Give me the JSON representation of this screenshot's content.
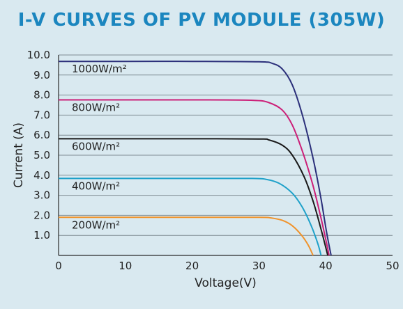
{
  "chart_data": {
    "type": "line",
    "title": "I-V CURVES OF PV MODULE (305W)",
    "xlabel": "Voltage(V)",
    "ylabel": "Current (A)",
    "xlim": [
      0,
      50
    ],
    "ylim": [
      0,
      10
    ],
    "x_ticks": [
      "0",
      "10",
      "20",
      "30",
      "40",
      "50"
    ],
    "y_ticks": [
      "1.0",
      "2.0",
      "3.0",
      "4.0",
      "5.0",
      "6.0",
      "7.0",
      "8.0",
      "9.0",
      "10.0"
    ],
    "grid": true,
    "series": [
      {
        "name": "1000W/m²",
        "color": "#2b2f7a",
        "points": [
          [
            0,
            9.68
          ],
          [
            10,
            9.68
          ],
          [
            20,
            9.68
          ],
          [
            30,
            9.66
          ],
          [
            32,
            9.58
          ],
          [
            33.5,
            9.3
          ],
          [
            35,
            8.5
          ],
          [
            36.5,
            7.0
          ],
          [
            38,
            5.0
          ],
          [
            39.2,
            3.0
          ],
          [
            40.1,
            1.2
          ],
          [
            40.8,
            0
          ]
        ]
      },
      {
        "name": "800W/m²",
        "color": "#cc1f78",
        "points": [
          [
            0,
            7.76
          ],
          [
            10,
            7.76
          ],
          [
            20,
            7.76
          ],
          [
            29,
            7.74
          ],
          [
            31.5,
            7.62
          ],
          [
            33.5,
            7.25
          ],
          [
            35,
            6.5
          ],
          [
            36.5,
            5.2
          ],
          [
            38,
            3.6
          ],
          [
            39.2,
            2.0
          ],
          [
            40,
            0.8
          ],
          [
            40.5,
            0
          ]
        ]
      },
      {
        "name": "600W/m²",
        "color": "#1a1a1a",
        "points": [
          [
            0,
            5.82
          ],
          [
            10,
            5.82
          ],
          [
            20,
            5.82
          ],
          [
            30,
            5.81
          ],
          [
            31.5,
            5.76
          ],
          [
            33.5,
            5.5
          ],
          [
            35,
            5.0
          ],
          [
            36.8,
            3.9
          ],
          [
            38.2,
            2.6
          ],
          [
            39.3,
            1.3
          ],
          [
            40,
            0.4
          ],
          [
            40.3,
            0
          ]
        ]
      },
      {
        "name": "400W/m²",
        "color": "#1ea1c9",
        "points": [
          [
            0,
            3.84
          ],
          [
            10,
            3.84
          ],
          [
            20,
            3.84
          ],
          [
            29,
            3.84
          ],
          [
            31,
            3.8
          ],
          [
            33,
            3.6
          ],
          [
            35,
            3.1
          ],
          [
            36.5,
            2.4
          ],
          [
            37.8,
            1.5
          ],
          [
            38.8,
            0.6
          ],
          [
            39.3,
            0
          ]
        ]
      },
      {
        "name": "200W/m²",
        "color": "#f0932b",
        "points": [
          [
            0,
            1.9
          ],
          [
            10,
            1.9
          ],
          [
            20,
            1.9
          ],
          [
            30,
            1.9
          ],
          [
            31.8,
            1.87
          ],
          [
            33.5,
            1.75
          ],
          [
            35,
            1.48
          ],
          [
            36.4,
            1.0
          ],
          [
            37.4,
            0.5
          ],
          [
            38.1,
            0
          ]
        ]
      }
    ]
  }
}
